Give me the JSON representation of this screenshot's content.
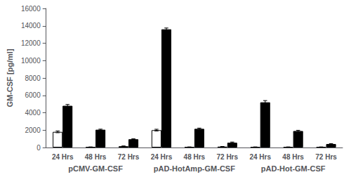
{
  "chart_data": {
    "type": "bar",
    "ylabel": "GM-CSF [pg/ml]",
    "categories": [
      "24 Hrs",
      "48 Hrs",
      "72 Hrs",
      "24 Hrs",
      "48 Hrs",
      "72 Hrs",
      "24 Hrs",
      "48 Hrs",
      "72 Hrs"
    ],
    "groups": [
      "pCMV-GM-CSF",
      "pAD-HotAmp-GM-CSF",
      "pAD-Hot-GM-CSF"
    ],
    "series": [
      {
        "color": "#ffffff",
        "values": [
          1800,
          50,
          150,
          2000,
          50,
          100,
          50,
          50,
          50
        ],
        "errors": [
          100,
          20,
          30,
          100,
          20,
          20,
          20,
          20,
          20
        ]
      },
      {
        "color": "#000000",
        "values": [
          4800,
          2050,
          950,
          13600,
          2150,
          550,
          5200,
          1900,
          400
        ],
        "errors": [
          150,
          60,
          50,
          150,
          80,
          80,
          200,
          80,
          50
        ]
      }
    ],
    "ylim": [
      0,
      16000
    ],
    "yticks": [
      0,
      2000,
      4000,
      6000,
      8000,
      10000,
      12000,
      14000,
      16000
    ],
    "grid": false
  }
}
